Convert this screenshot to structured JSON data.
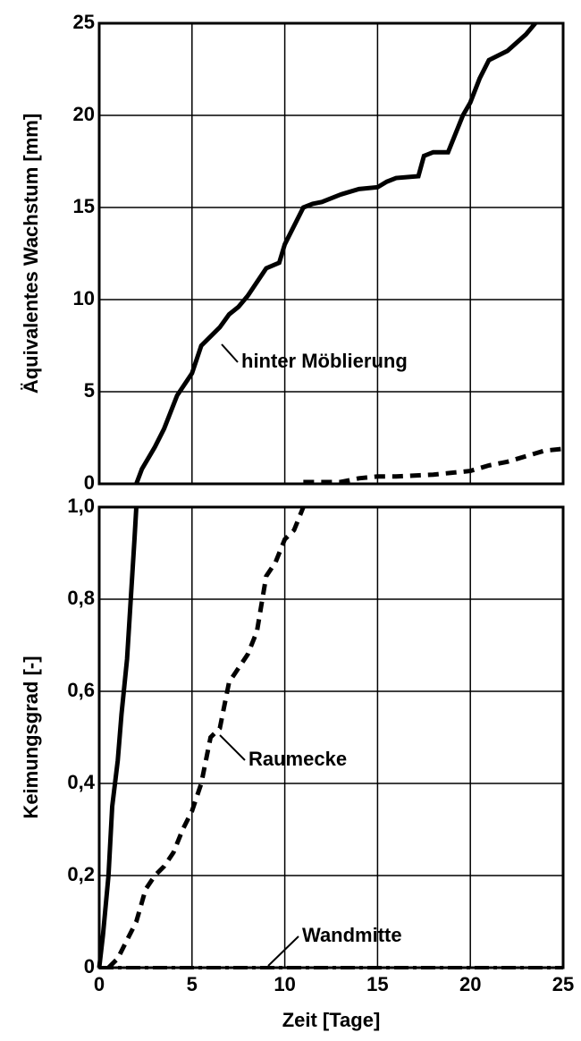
{
  "chart_data": [
    {
      "type": "line",
      "ylabel": "Äquivalentes Wachstum [mm]",
      "xlim": [
        0,
        25
      ],
      "ylim": [
        0,
        25
      ],
      "yticks": [
        0,
        5,
        10,
        15,
        20,
        25
      ],
      "grid": true,
      "series": [
        {
          "name": "hinter Möblierung",
          "color": "#000000",
          "style": "solid",
          "x": [
            2,
            2.3,
            3,
            3.5,
            4.2,
            5,
            5.5,
            6,
            6.5,
            7,
            7.5,
            8,
            9,
            9.7,
            10,
            10.5,
            11,
            11.5,
            12,
            13,
            14,
            15,
            15.5,
            16,
            17.2,
            17.5,
            18,
            18.8,
            19.2,
            19.6,
            20,
            20.5,
            21,
            22,
            23,
            23.5
          ],
          "values": [
            0,
            0.8,
            2,
            3,
            4.8,
            6,
            7.5,
            8,
            8.5,
            9.2,
            9.6,
            10.2,
            11.7,
            12,
            13,
            14,
            15,
            15.2,
            15.3,
            15.7,
            16,
            16.1,
            16.4,
            16.6,
            16.7,
            17.8,
            18,
            18,
            19,
            20,
            20.7,
            22,
            23,
            23.5,
            24.4,
            25
          ]
        },
        {
          "color": "#000000",
          "style": "dashed",
          "x": [
            11,
            12,
            13,
            14,
            15,
            16,
            18,
            19,
            20,
            21,
            22,
            23,
            24,
            25
          ],
          "values": [
            0.1,
            0.1,
            0.1,
            0.3,
            0.4,
            0.4,
            0.5,
            0.6,
            0.7,
            1,
            1.2,
            1.5,
            1.8,
            1.9
          ]
        }
      ]
    },
    {
      "type": "line",
      "ylabel": "Keimungsgrad [-]",
      "xlabel": "Zeit  [Tage]",
      "xlim": [
        0,
        25
      ],
      "xticks": [
        0,
        5,
        10,
        15,
        20,
        25
      ],
      "ylim": [
        0,
        1
      ],
      "yticks": [
        {
          "value": 0,
          "label": "0"
        },
        {
          "value": 0.2,
          "label": "0,2"
        },
        {
          "value": 0.4,
          "label": "0,4"
        },
        {
          "value": 0.6,
          "label": "0,6"
        },
        {
          "value": 0.8,
          "label": "0,8"
        },
        {
          "value": 1,
          "label": "1,0"
        }
      ],
      "grid": true,
      "series": [
        {
          "color": "#000000",
          "style": "solid",
          "x": [
            0,
            0.2,
            0.5,
            0.7,
            1,
            1.2,
            1.5,
            1.7,
            1.9,
            2
          ],
          "values": [
            0,
            0.07,
            0.2,
            0.35,
            0.45,
            0.55,
            0.67,
            0.8,
            0.93,
            1
          ]
        },
        {
          "name": "Raumecke",
          "color": "#000000",
          "style": "dashed",
          "x": [
            0.5,
            1,
            1.5,
            2,
            2.5,
            3,
            3.5,
            4,
            4.5,
            5,
            5.5,
            6,
            6.5,
            7,
            8,
            8.5,
            9,
            9.5,
            10,
            10.5,
            11
          ],
          "values": [
            0,
            0.02,
            0.06,
            0.1,
            0.17,
            0.2,
            0.22,
            0.25,
            0.3,
            0.34,
            0.4,
            0.5,
            0.52,
            0.62,
            0.68,
            0.73,
            0.85,
            0.88,
            0.93,
            0.95,
            1
          ]
        },
        {
          "name": "Wandmitte",
          "color": "#000000",
          "style": "dashdot",
          "x": [
            0,
            25
          ],
          "values": [
            0,
            0
          ]
        }
      ]
    }
  ]
}
